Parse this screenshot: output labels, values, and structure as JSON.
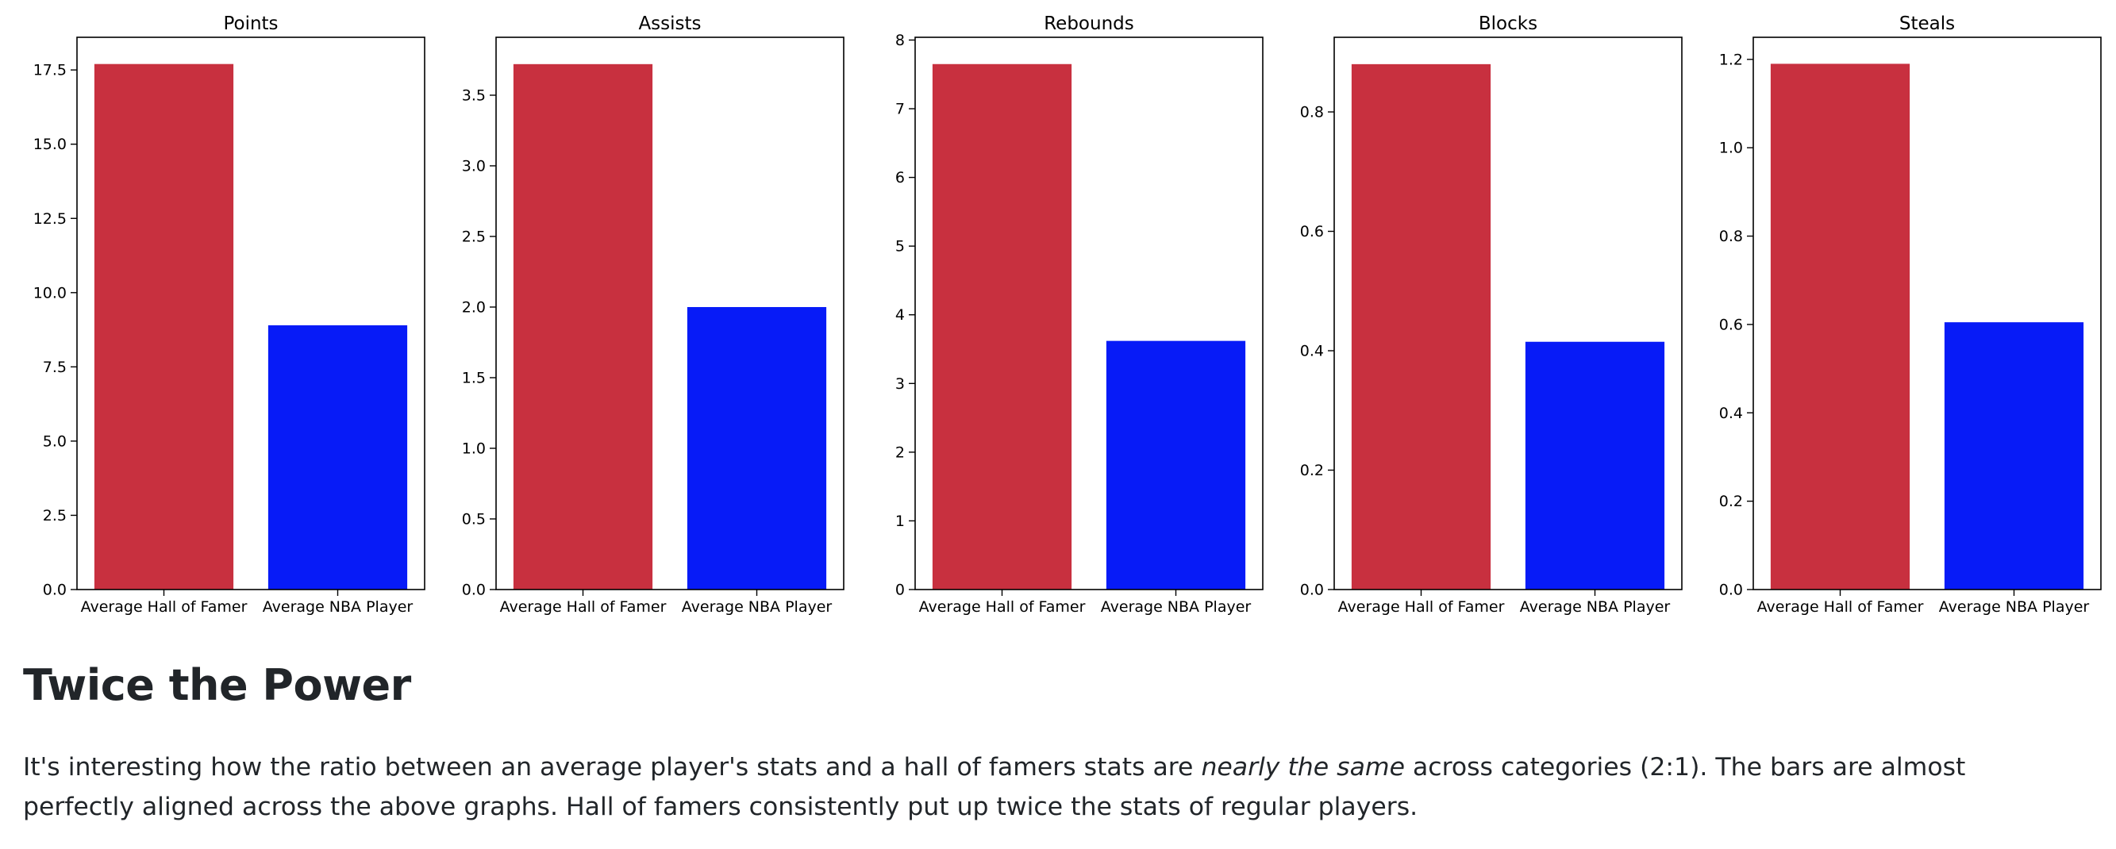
{
  "colors": {
    "hall_of_famer": "#c8303f",
    "nba_player": "#071bf7",
    "text": "#212529"
  },
  "chart_data": [
    {
      "type": "bar",
      "title": "Points",
      "categories": [
        "Average Hall of Famer",
        "Average NBA Player"
      ],
      "values": [
        17.7,
        8.9
      ],
      "ylim": [
        0,
        18.6
      ],
      "yticks": [
        0.0,
        2.5,
        5.0,
        7.5,
        10.0,
        12.5,
        15.0,
        17.5
      ],
      "ytick_labels": [
        "0.0",
        "2.5",
        "5.0",
        "7.5",
        "10.0",
        "12.5",
        "15.0",
        "17.5"
      ],
      "xlabel": "",
      "ylabel": "",
      "grid": false
    },
    {
      "type": "bar",
      "title": "Assists",
      "categories": [
        "Average Hall of Famer",
        "Average NBA Player"
      ],
      "values": [
        3.72,
        2.0
      ],
      "ylim": [
        0,
        3.91
      ],
      "yticks": [
        0.0,
        0.5,
        1.0,
        1.5,
        2.0,
        2.5,
        3.0,
        3.5
      ],
      "ytick_labels": [
        "0.0",
        "0.5",
        "1.0",
        "1.5",
        "2.0",
        "2.5",
        "3.0",
        "3.5"
      ],
      "xlabel": "",
      "ylabel": "",
      "grid": false
    },
    {
      "type": "bar",
      "title": "Rebounds",
      "categories": [
        "Average Hall of Famer",
        "Average NBA Player"
      ],
      "values": [
        7.65,
        3.62
      ],
      "ylim": [
        0,
        8.04
      ],
      "yticks": [
        0,
        1,
        2,
        3,
        4,
        5,
        6,
        7,
        8
      ],
      "ytick_labels": [
        "0",
        "1",
        "2",
        "3",
        "4",
        "5",
        "6",
        "7",
        "8"
      ],
      "xlabel": "",
      "ylabel": "",
      "grid": false
    },
    {
      "type": "bar",
      "title": "Blocks",
      "categories": [
        "Average Hall of Famer",
        "Average NBA Player"
      ],
      "values": [
        0.88,
        0.415
      ],
      "ylim": [
        0,
        0.925
      ],
      "yticks": [
        0.0,
        0.2,
        0.4,
        0.6,
        0.8
      ],
      "ytick_labels": [
        "0.0",
        "0.2",
        "0.4",
        "0.6",
        "0.8"
      ],
      "xlabel": "",
      "ylabel": "",
      "grid": false
    },
    {
      "type": "bar",
      "title": "Steals",
      "categories": [
        "Average Hall of Famer",
        "Average NBA Player"
      ],
      "values": [
        1.19,
        0.605
      ],
      "ylim": [
        0,
        1.25
      ],
      "yticks": [
        0.0,
        0.2,
        0.4,
        0.6,
        0.8,
        1.0,
        1.2
      ],
      "ytick_labels": [
        "0.0",
        "0.2",
        "0.4",
        "0.6",
        "0.8",
        "1.0",
        "1.2"
      ],
      "xlabel": "",
      "ylabel": "",
      "grid": false
    }
  ],
  "article": {
    "heading": "Twice the Power",
    "paragraph": {
      "before": "It's interesting how the ratio between an average player's stats and a hall of famers stats are ",
      "emphasis": "nearly the same",
      "after": " across categories (2:1). The bars are almost perfectly aligned across the above graphs. Hall of famers consistently put up twice the stats of regular players."
    }
  }
}
